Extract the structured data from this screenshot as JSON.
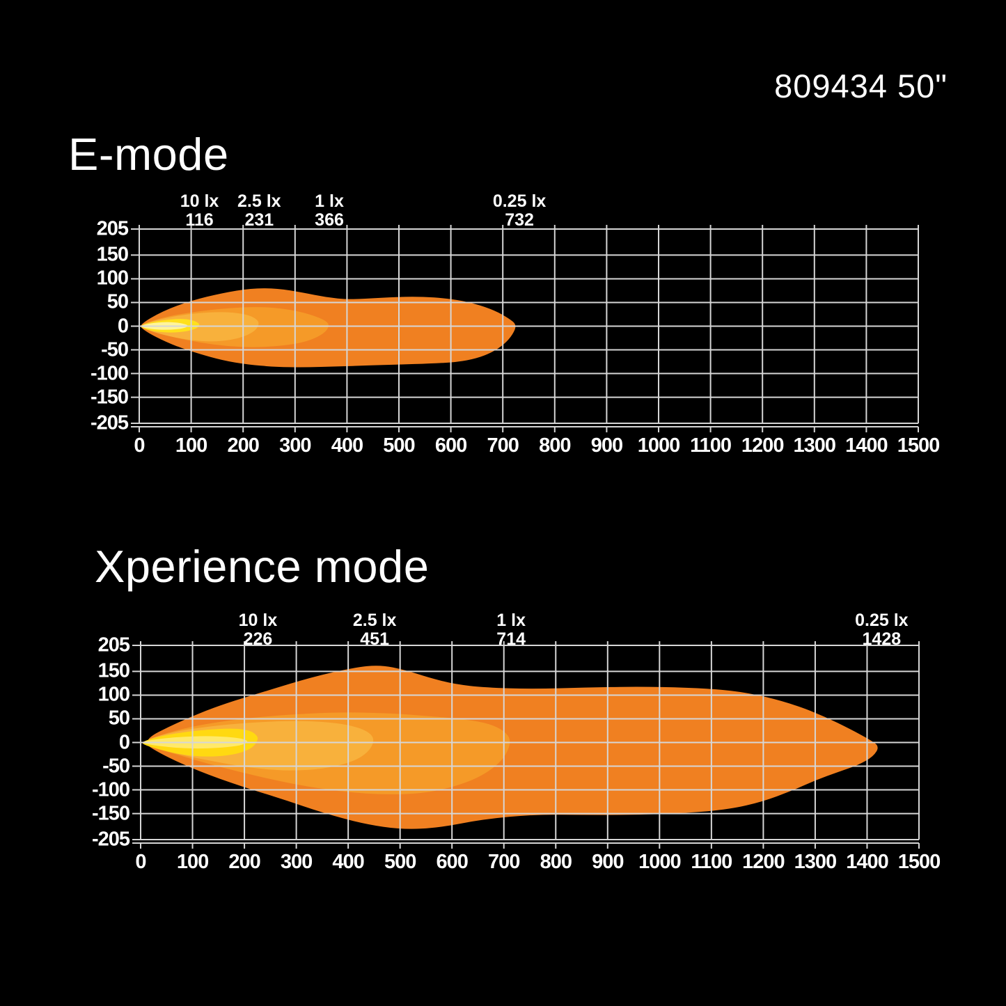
{
  "header": {
    "product_label": "809434 50\""
  },
  "colors": {
    "background": "#000000",
    "grid": "#D6D6D6",
    "text": "#FFFFFF",
    "beam_outer_orange": "#F08021",
    "beam_light_orange": "#F59A28",
    "beam_amber": "#F8B13C",
    "beam_yellow": "#FFDB13",
    "beam_core": "#FFF195"
  },
  "chart_data": [
    {
      "type": "area",
      "title": "E-mode",
      "x_range": [
        0,
        1500
      ],
      "y_range": [
        -205,
        205
      ],
      "x_ticks": [
        0,
        100,
        200,
        300,
        400,
        500,
        600,
        700,
        800,
        900,
        1000,
        1100,
        1200,
        1300,
        1400,
        1500
      ],
      "y_ticks": [
        205,
        150,
        100,
        50,
        0,
        -50,
        -100,
        -150,
        -205
      ],
      "grid": true,
      "lux_markers": [
        {
          "label": "10 lx",
          "distance": 116
        },
        {
          "label": "2.5 lx",
          "distance": 231
        },
        {
          "label": "1 lx",
          "distance": 366
        },
        {
          "label": "0.25 lx",
          "distance": 732
        }
      ],
      "beam_layers": [
        {
          "name": "0.25 lx contour",
          "reach": 732,
          "color": "#F08021",
          "points": [
            [
              0,
              3
            ],
            [
              45,
              32
            ],
            [
              100,
              54
            ],
            [
              160,
              70
            ],
            [
              215,
              80
            ],
            [
              265,
              80
            ],
            [
              315,
              71
            ],
            [
              360,
              61
            ],
            [
              405,
              56
            ],
            [
              465,
              60
            ],
            [
              535,
              63
            ],
            [
              600,
              58
            ],
            [
              645,
              48
            ],
            [
              685,
              33
            ],
            [
              712,
              16
            ],
            [
              727,
              3
            ],
            [
              719,
              -18
            ],
            [
              703,
              -38
            ],
            [
              680,
              -55
            ],
            [
              650,
              -68
            ],
            [
              612,
              -76
            ],
            [
              560,
              -79
            ],
            [
              500,
              -81
            ],
            [
              440,
              -83
            ],
            [
              380,
              -85
            ],
            [
              320,
              -87
            ],
            [
              260,
              -86
            ],
            [
              208,
              -81
            ],
            [
              160,
              -72
            ],
            [
              114,
              -58
            ],
            [
              70,
              -42
            ],
            [
              32,
              -23
            ],
            [
              7,
              -7
            ]
          ]
        },
        {
          "name": "1 lx contour",
          "reach": 366,
          "color": "#F59A28",
          "points": [
            [
              0,
              2
            ],
            [
              50,
              20
            ],
            [
              110,
              31
            ],
            [
              170,
              38
            ],
            [
              225,
              41
            ],
            [
              272,
              38
            ],
            [
              312,
              30
            ],
            [
              342,
              20
            ],
            [
              361,
              10
            ],
            [
              366,
              1
            ],
            [
              359,
              -12
            ],
            [
              340,
              -25
            ],
            [
              310,
              -36
            ],
            [
              268,
              -42
            ],
            [
              220,
              -45
            ],
            [
              168,
              -42
            ],
            [
              118,
              -35
            ],
            [
              68,
              -24
            ],
            [
              27,
              -12
            ],
            [
              5,
              -4
            ]
          ]
        },
        {
          "name": "2.5 lx contour",
          "reach": 231,
          "color": "#F8B13C",
          "points": [
            [
              0,
              2
            ],
            [
              40,
              15
            ],
            [
              90,
              25
            ],
            [
              140,
              30
            ],
            [
              182,
              29
            ],
            [
              212,
              23
            ],
            [
              227,
              14
            ],
            [
              231,
              5
            ],
            [
              225,
              -8
            ],
            [
              207,
              -20
            ],
            [
              178,
              -29
            ],
            [
              140,
              -33
            ],
            [
              100,
              -30
            ],
            [
              60,
              -22
            ],
            [
              26,
              -12
            ],
            [
              4,
              -3
            ]
          ]
        },
        {
          "name": "10 lx contour",
          "reach": 116,
          "color": "#FFE01C",
          "points": [
            [
              0,
              1
            ],
            [
              25,
              9
            ],
            [
              55,
              14
            ],
            [
              85,
              16
            ],
            [
              105,
              12
            ],
            [
              115,
              6
            ],
            [
              116,
              1
            ],
            [
              110,
              -5
            ],
            [
              92,
              -11
            ],
            [
              63,
              -14
            ],
            [
              34,
              -12
            ],
            [
              10,
              -6
            ]
          ]
        },
        {
          "name": "hotspot core",
          "reach": 95,
          "color": "#FFF49B",
          "points": [
            [
              2,
              1
            ],
            [
              22,
              6
            ],
            [
              48,
              9
            ],
            [
              72,
              8
            ],
            [
              90,
              4
            ],
            [
              95,
              0
            ],
            [
              84,
              -5
            ],
            [
              58,
              -8
            ],
            [
              28,
              -7
            ],
            [
              7,
              -3
            ]
          ]
        }
      ]
    },
    {
      "type": "area",
      "title": "Xperience mode",
      "x_range": [
        0,
        1500
      ],
      "y_range": [
        -205,
        205
      ],
      "x_ticks": [
        0,
        100,
        200,
        300,
        400,
        500,
        600,
        700,
        800,
        900,
        1000,
        1100,
        1200,
        1300,
        1400,
        1500
      ],
      "y_ticks": [
        205,
        150,
        100,
        50,
        0,
        -50,
        -100,
        -150,
        -205
      ],
      "grid": true,
      "lux_markers": [
        {
          "label": "10 lx",
          "distance": 226
        },
        {
          "label": "2.5 lx",
          "distance": 451
        },
        {
          "label": "1 lx",
          "distance": 714
        },
        {
          "label": "0.25 lx",
          "distance": 1428
        }
      ],
      "beam_layers": [
        {
          "name": "0.25 lx contour",
          "reach": 1428,
          "color": "#F08021",
          "points": [
            [
              0,
              3
            ],
            [
              70,
              42
            ],
            [
              150,
              78
            ],
            [
              240,
              108
            ],
            [
              330,
              138
            ],
            [
              410,
              158
            ],
            [
              462,
              164
            ],
            [
              510,
              153
            ],
            [
              555,
              137
            ],
            [
              605,
              123
            ],
            [
              665,
              116
            ],
            [
              755,
              113
            ],
            [
              855,
              116
            ],
            [
              955,
              118
            ],
            [
              1055,
              116
            ],
            [
              1140,
              110
            ],
            [
              1205,
              97
            ],
            [
              1265,
              78
            ],
            [
              1318,
              55
            ],
            [
              1368,
              28
            ],
            [
              1405,
              6
            ],
            [
              1424,
              -8
            ],
            [
              1412,
              -30
            ],
            [
              1382,
              -48
            ],
            [
              1345,
              -62
            ],
            [
              1300,
              -80
            ],
            [
              1255,
              -102
            ],
            [
              1198,
              -125
            ],
            [
              1135,
              -141
            ],
            [
              1050,
              -149
            ],
            [
              950,
              -153
            ],
            [
              850,
              -153
            ],
            [
              760,
              -152
            ],
            [
              660,
              -162
            ],
            [
              575,
              -180
            ],
            [
              505,
              -184
            ],
            [
              430,
              -172
            ],
            [
              350,
              -148
            ],
            [
              275,
              -120
            ],
            [
              195,
              -93
            ],
            [
              110,
              -60
            ],
            [
              40,
              -25
            ]
          ]
        },
        {
          "name": "1 lx contour",
          "reach": 714,
          "color": "#F59A28",
          "points": [
            [
              0,
              2
            ],
            [
              80,
              30
            ],
            [
              170,
              47
            ],
            [
              270,
              58
            ],
            [
              380,
              64
            ],
            [
              480,
              62
            ],
            [
              565,
              55
            ],
            [
              625,
              49
            ],
            [
              672,
              40
            ],
            [
              702,
              24
            ],
            [
              714,
              4
            ],
            [
              705,
              -25
            ],
            [
              685,
              -50
            ],
            [
              650,
              -75
            ],
            [
              600,
              -95
            ],
            [
              540,
              -108
            ],
            [
              470,
              -110
            ],
            [
              400,
              -105
            ],
            [
              330,
              -95
            ],
            [
              260,
              -80
            ],
            [
              190,
              -62
            ],
            [
              120,
              -42
            ],
            [
              60,
              -22
            ],
            [
              15,
              -8
            ]
          ]
        },
        {
          "name": "2.5 lx contour",
          "reach": 451,
          "color": "#F8B13C",
          "points": [
            [
              0,
              2
            ],
            [
              60,
              22
            ],
            [
              130,
              34
            ],
            [
              210,
              42
            ],
            [
              290,
              46
            ],
            [
              352,
              44
            ],
            [
              402,
              37
            ],
            [
              436,
              25
            ],
            [
              451,
              8
            ],
            [
              443,
              -15
            ],
            [
              420,
              -35
            ],
            [
              385,
              -48
            ],
            [
              340,
              -57
            ],
            [
              280,
              -60
            ],
            [
              215,
              -54
            ],
            [
              150,
              -42
            ],
            [
              85,
              -28
            ],
            [
              32,
              -13
            ]
          ]
        },
        {
          "name": "10 lx contour",
          "reach": 226,
          "color": "#FFD911",
          "points": [
            [
              0,
              1
            ],
            [
              40,
              14
            ],
            [
              90,
              23
            ],
            [
              140,
              28
            ],
            [
              182,
              30
            ],
            [
              212,
              25
            ],
            [
              225,
              14
            ],
            [
              226,
              5
            ],
            [
              217,
              -10
            ],
            [
              194,
              -22
            ],
            [
              158,
              -29
            ],
            [
              116,
              -30
            ],
            [
              74,
              -25
            ],
            [
              37,
              -15
            ],
            [
              9,
              -6
            ]
          ]
        },
        {
          "name": "hotspot core",
          "reach": 208,
          "color": "#FFE96A",
          "points": [
            [
              0,
              1
            ],
            [
              35,
              8
            ],
            [
              80,
              12
            ],
            [
              125,
              14
            ],
            [
              168,
              12
            ],
            [
              198,
              8
            ],
            [
              208,
              2
            ],
            [
              198,
              -5
            ],
            [
              168,
              -10
            ],
            [
              124,
              -13
            ],
            [
              76,
              -12
            ],
            [
              32,
              -7
            ],
            [
              6,
              -2
            ]
          ]
        }
      ]
    }
  ]
}
